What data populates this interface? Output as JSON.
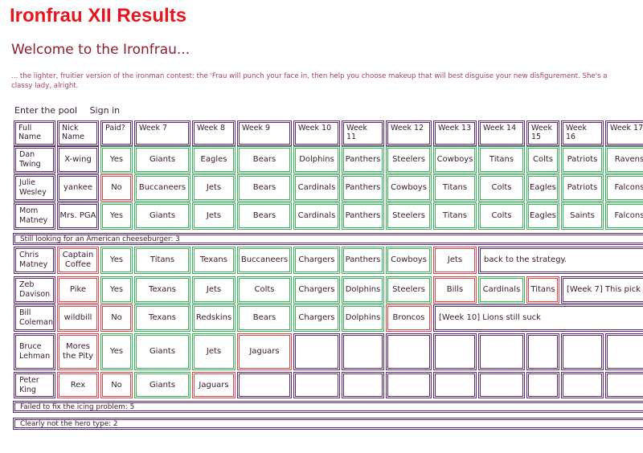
{
  "title": "Ironfrau XII Results",
  "welcome": "Welcome to the Ironfrau...",
  "intro": "... the lighter, fruitier version of the ironman contest: the 'Frau will punch your face in, then help you choose makeup that will best disguise your new disfigurement. She's a classy lady, alright.",
  "links": {
    "enter": "Enter the pool",
    "signin": "Sign in"
  },
  "headers": [
    "Full Name",
    "Nick Name",
    "Paid?",
    "Week 7",
    "Week 8",
    "Week 9",
    "Week 10",
    "Week 11",
    "Week 12",
    "Week 13",
    "Week 14",
    "Week 15",
    "Week 16",
    "Week 17"
  ],
  "colors": {
    "title": "#e8141e",
    "alive": "#3cb25a",
    "eliminated": "#e0454f",
    "frame": "#5b2a70"
  },
  "sections": [
    {
      "label": "Still looking for an American cheeseburger: 3"
    },
    {
      "label": "Failed to fix the icing problem: 5"
    },
    {
      "label": "Clearly not the hero type: 2"
    }
  ],
  "rows": [
    {
      "name": "Dan Twing",
      "nick": "X-wing",
      "paid": "Yes",
      "picks": [
        "Giants",
        "Eagles",
        "Bears",
        "Dolphins",
        "Panthers",
        "Steelers",
        "Cowboys",
        "Titans",
        "Colts",
        "Patriots",
        "Ravens"
      ]
    },
    {
      "name": "Julie Wesley",
      "nick": "yankee",
      "paid": "No",
      "picks": [
        "Buccaneers",
        "Jets",
        "Bears",
        "Cardinals",
        "Panthers",
        "Cowboys",
        "Titans",
        "Colts",
        "Eagles",
        "Patriots",
        "Falcons"
      ]
    },
    {
      "name": "Mom Matney",
      "nick": "Mrs. PGA",
      "paid": "Yes",
      "picks": [
        "Giants",
        "Jets",
        "Bears",
        "Cardinals",
        "Panthers",
        "Steelers",
        "Titans",
        "Colts",
        "Eagles",
        "Saints",
        "Falcons"
      ]
    },
    {
      "name": "Chris Matney",
      "nick": "Captain Coffee",
      "paid": "Yes",
      "picks": [
        "Titans",
        "Texans",
        "Buccaneers",
        "Chargers",
        "Panthers",
        "Cowboys",
        "Jets"
      ],
      "note": "back to the strategy."
    },
    {
      "name": "Zeb Davison",
      "nick": "Pike",
      "paid": "Yes",
      "picks": [
        "Texans",
        "Jets",
        "Colts",
        "Chargers",
        "Dolphins",
        "Steelers",
        "Bills",
        "Cardinals",
        "Titans"
      ],
      "note": "[Week 7] This pick"
    },
    {
      "name": "Bill Coleman",
      "nick": "wildbill",
      "paid": "No",
      "picks": [
        "Texans",
        "Redskins",
        "Bears",
        "Chargers",
        "Dolphins",
        "Broncos"
      ],
      "note": "[Week 10] Lions still suck"
    },
    {
      "name": "Bruce Lehman",
      "nick": "Mores the Pity",
      "paid": "Yes",
      "picks": [
        "Giants",
        "Jets",
        "Jaguars"
      ]
    },
    {
      "name": "Peter King",
      "nick": "Rex",
      "paid": "No",
      "picks": [
        "Giants",
        "Jaguars"
      ]
    }
  ]
}
